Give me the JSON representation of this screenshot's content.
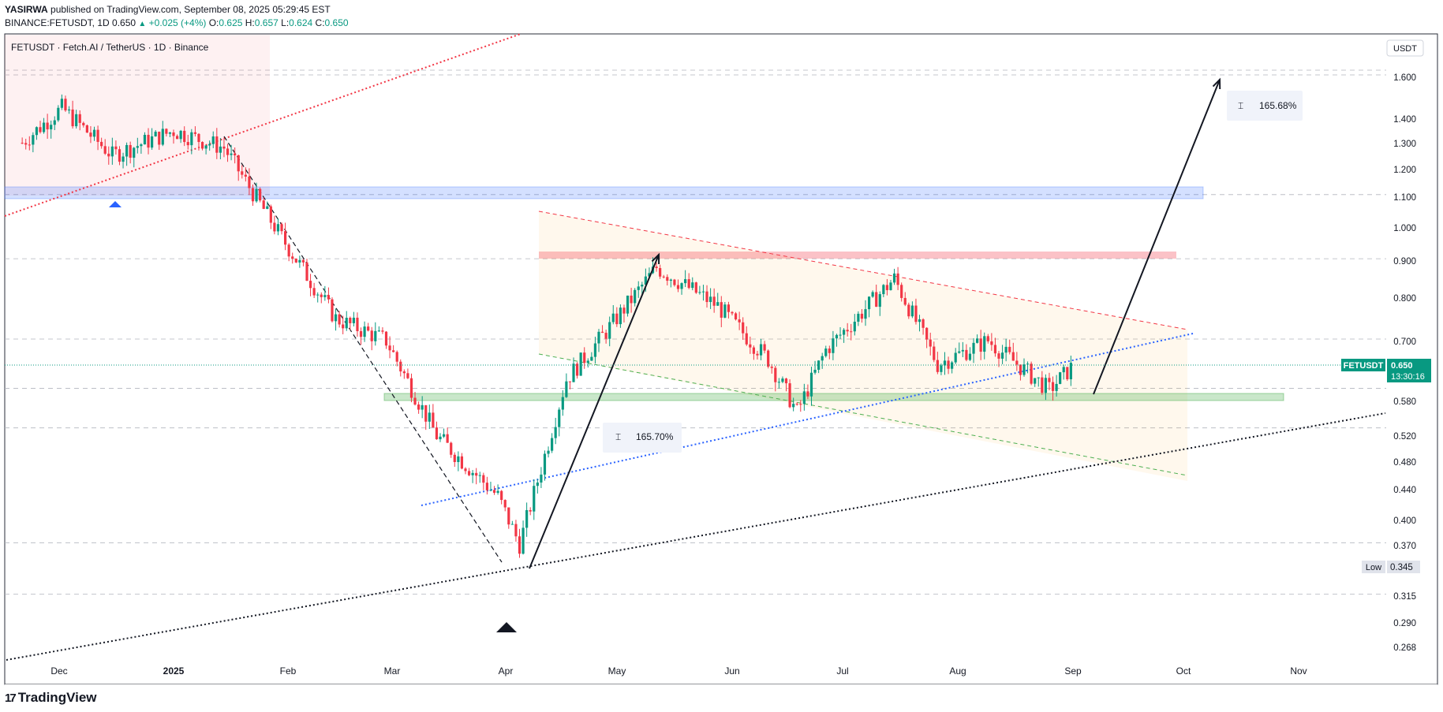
{
  "header": {
    "publisher": "YASIRWA",
    "published_text": "published on TradingView.com, September 08, 2025 05:29:45 EST",
    "symbol_line": "BINANCE:FETUSDT, 1D",
    "last": "0.650",
    "change": "+0.025 (+4%)",
    "o_label": "O:",
    "o_val": "0.625",
    "h_label": "H:",
    "h_val": "0.657",
    "l_label": "L:",
    "l_val": "0.624",
    "c_label": "C:",
    "c_val": "0.650"
  },
  "footer": {
    "brand": "TradingView",
    "logo": "17"
  },
  "chart_data": {
    "type": "candlestick",
    "title": "FETUSDT · Fetch.AI / TetherUS · 1D · Binance",
    "currency": "USDT",
    "scale": "log",
    "ylim": [
      0.26,
      1.7
    ],
    "x_tick_labels": [
      "Dec",
      "2025",
      "Feb",
      "Mar",
      "Apr",
      "May",
      "Jun",
      "Jul",
      "Aug",
      "Sep",
      "Oct",
      "Nov"
    ],
    "y_tick_labels": [
      "1.600",
      "1.400",
      "1.300",
      "1.200",
      "1.100",
      "1.000",
      "0.900",
      "0.800",
      "0.700",
      "0.580",
      "0.520",
      "0.480",
      "0.440",
      "0.400",
      "0.370",
      "0.315",
      "0.290",
      "0.268"
    ],
    "price_label": {
      "name": "FETUSDT",
      "value": "0.650",
      "countdown": "13:30:16"
    },
    "low_label": {
      "name": "Low",
      "value": "0.345"
    },
    "monthly_close_path": [
      [
        "2024-11-20",
        1.3
      ],
      [
        "2024-12-01",
        1.45
      ],
      [
        "2024-12-15",
        1.25
      ],
      [
        "2025-01-01",
        1.35
      ],
      [
        "2025-01-15",
        1.28
      ],
      [
        "2025-02-01",
        0.95
      ],
      [
        "2025-02-15",
        0.75
      ],
      [
        "2025-03-01",
        0.7
      ],
      [
        "2025-03-15",
        0.52
      ],
      [
        "2025-04-01",
        0.43
      ],
      [
        "2025-04-07",
        0.37
      ],
      [
        "2025-04-20",
        0.62
      ],
      [
        "2025-05-01",
        0.72
      ],
      [
        "2025-05-15",
        0.88
      ],
      [
        "2025-06-01",
        0.78
      ],
      [
        "2025-06-15",
        0.66
      ],
      [
        "2025-06-23",
        0.56
      ],
      [
        "2025-07-01",
        0.68
      ],
      [
        "2025-07-20",
        0.85
      ],
      [
        "2025-08-01",
        0.65
      ],
      [
        "2025-08-15",
        0.7
      ],
      [
        "2025-09-01",
        0.6
      ],
      [
        "2025-09-08",
        0.65
      ]
    ],
    "annotations": [
      {
        "type": "measure",
        "label": "165.70%"
      },
      {
        "type": "measure",
        "label": "165.68%"
      },
      {
        "type": "zone",
        "name": "resistance-zone-blue",
        "price": [
          1.08,
          1.12
        ]
      },
      {
        "type": "zone",
        "name": "resistance-zone-red",
        "price": [
          0.91,
          0.93
        ]
      },
      {
        "type": "zone",
        "name": "support-zone-green",
        "price": [
          0.585,
          0.6
        ]
      }
    ],
    "colors": {
      "up": "#089981",
      "down": "#f23645",
      "price_line": "#089981",
      "accent_blue": "#2962ff"
    }
  }
}
